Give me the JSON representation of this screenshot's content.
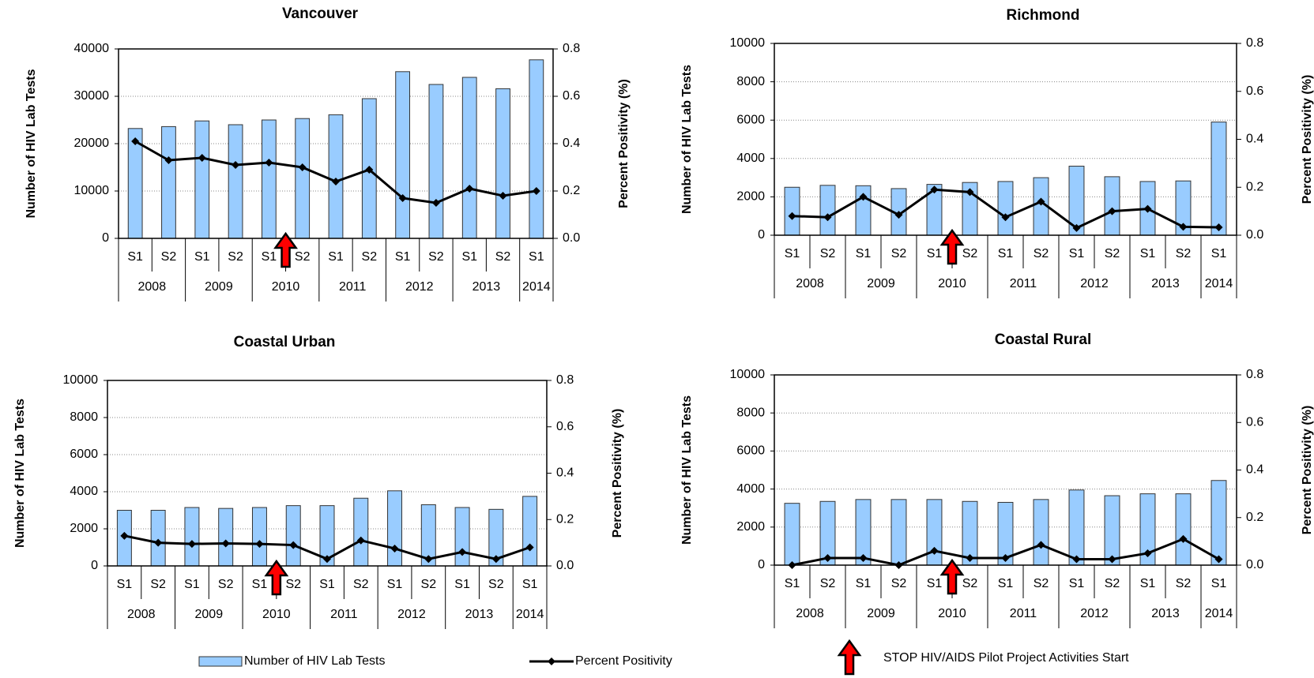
{
  "chart_data": [
    {
      "type": "combo",
      "title": "Vancouver",
      "ylabel": "Number of HIV Lab Tests",
      "y2label": "Percent Positivity (%)",
      "categories": [
        "S1",
        "S2",
        "S1",
        "S2",
        "S1",
        "S2",
        "S1",
        "S2",
        "S1",
        "S2",
        "S1",
        "S2",
        "S1"
      ],
      "groups": [
        "2008",
        "2009",
        "2010",
        "2011",
        "2012",
        "2013",
        "2014"
      ],
      "ylim": [
        0,
        40000
      ],
      "yticks": [
        0,
        10000,
        20000,
        30000,
        40000
      ],
      "y2lim": [
        0,
        0.8
      ],
      "y2ticks": [
        {
          "value": 0,
          "label": "0.0"
        },
        0.2,
        0.4,
        0.6,
        0.8
      ],
      "grid": true,
      "annotation": "STOP HIV/AIDS Pilot Project Activities Start",
      "series": [
        {
          "name": "Number of HIV Lab Tests",
          "type": "bar",
          "color": "#99ccff",
          "values": [
            23200,
            23600,
            24800,
            24000,
            25000,
            25300,
            26100,
            29500,
            35200,
            32500,
            34000,
            31600,
            37700
          ]
        },
        {
          "name": "Percent Positivity",
          "type": "line",
          "axis": "y2",
          "color": "#000000",
          "values": [
            0.41,
            0.33,
            0.34,
            0.31,
            0.32,
            0.3,
            0.24,
            0.29,
            0.17,
            0.15,
            0.21,
            0.18,
            0.2
          ]
        }
      ]
    },
    {
      "type": "combo",
      "title": "Richmond",
      "ylabel": "Number of HIV Lab Tests",
      "y2label": "Percent Positivity (%)",
      "categories": [
        "S1",
        "S2",
        "S1",
        "S2",
        "S1",
        "S2",
        "S1",
        "S2",
        "S1",
        "S2",
        "S1",
        "S2",
        "S1"
      ],
      "groups": [
        "2008",
        "2009",
        "2010",
        "2011",
        "2012",
        "2013",
        "2014"
      ],
      "ylim": [
        0,
        10000
      ],
      "yticks": [
        0,
        2000,
        4000,
        6000,
        8000,
        10000
      ],
      "y2lim": [
        0,
        0.8
      ],
      "y2ticks": [
        {
          "value": 0,
          "label": "0.0"
        },
        0.2,
        0.4,
        0.6,
        0.8
      ],
      "grid": true,
      "series": [
        {
          "type": "bar",
          "color": "#99ccff",
          "values": [
            2500,
            2600,
            2580,
            2430,
            2650,
            2750,
            2800,
            3000,
            3600,
            3050,
            2800,
            2830,
            5900
          ]
        },
        {
          "type": "line",
          "axis": "y2",
          "color": "#000000",
          "values": [
            0.08,
            0.075,
            0.16,
            0.085,
            0.19,
            0.18,
            0.075,
            0.14,
            0.03,
            0.1,
            0.11,
            0.035,
            0.033
          ]
        }
      ]
    },
    {
      "type": "combo",
      "title": "Coastal Urban",
      "ylabel": "Number of HIV Lab Tests",
      "y2label": "Percent Positivity (%)",
      "categories": [
        "S1",
        "S2",
        "S1",
        "S2",
        "S1",
        "S2",
        "S1",
        "S2",
        "S1",
        "S2",
        "S1",
        "S2",
        "S1"
      ],
      "groups": [
        "2008",
        "2009",
        "2010",
        "2011",
        "2012",
        "2013",
        "2014"
      ],
      "ylim": [
        0,
        10000
      ],
      "yticks": [
        0,
        2000,
        4000,
        6000,
        8000,
        10000
      ],
      "y2lim": [
        0,
        0.8
      ],
      "y2ticks": [
        {
          "value": 0,
          "label": "0.0"
        },
        0.2,
        0.4,
        0.6,
        0.8
      ],
      "grid": true,
      "series": [
        {
          "type": "bar",
          "color": "#99ccff",
          "values": [
            3000,
            3000,
            3150,
            3100,
            3150,
            3250,
            3250,
            3650,
            4050,
            3300,
            3150,
            3050,
            3750
          ]
        },
        {
          "type": "line",
          "axis": "y2",
          "color": "#000000",
          "values": [
            0.13,
            0.1,
            0.095,
            0.097,
            0.095,
            0.09,
            0.03,
            0.11,
            0.075,
            0.03,
            0.06,
            0.03,
            0.08
          ]
        }
      ]
    },
    {
      "type": "combo",
      "title": "Coastal Rural",
      "ylabel": "Number of HIV Lab Tests",
      "y2label": "Percent Positivity (%)",
      "categories": [
        "S1",
        "S2",
        "S1",
        "S2",
        "S1",
        "S2",
        "S1",
        "S2",
        "S1",
        "S2",
        "S1",
        "S2",
        "S1"
      ],
      "groups": [
        "2008",
        "2009",
        "2010",
        "2011",
        "2012",
        "2013",
        "2014"
      ],
      "ylim": [
        0,
        10000
      ],
      "yticks": [
        0,
        2000,
        4000,
        6000,
        8000,
        10000
      ],
      "y2lim": [
        0,
        0.8
      ],
      "y2ticks": [
        {
          "value": 0,
          "label": "0.0"
        },
        0.2,
        0.4,
        0.6,
        0.8
      ],
      "grid": true,
      "series": [
        {
          "type": "bar",
          "color": "#99ccff",
          "values": [
            3250,
            3350,
            3450,
            3450,
            3450,
            3350,
            3300,
            3450,
            3950,
            3650,
            3750,
            3750,
            4450
          ]
        },
        {
          "type": "line",
          "axis": "y2",
          "color": "#000000",
          "values": [
            0.0,
            0.03,
            0.03,
            0.0,
            0.06,
            0.03,
            0.03,
            0.085,
            0.025,
            0.025,
            0.05,
            0.11,
            0.025
          ]
        }
      ]
    }
  ]
}
